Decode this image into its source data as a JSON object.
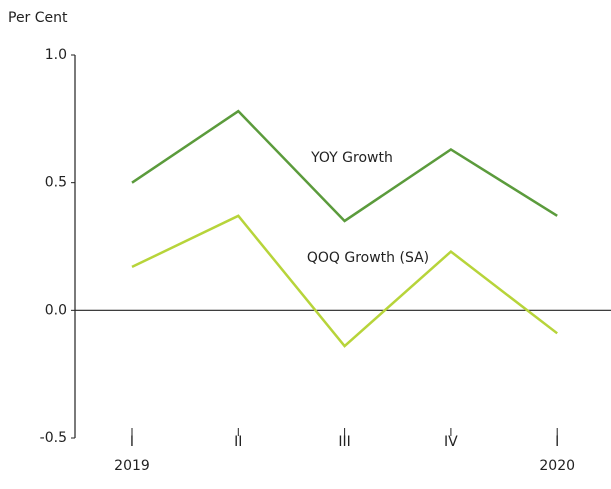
{
  "chart_data": {
    "type": "line",
    "y_label": "Per Cent",
    "categories": [
      "I",
      "II",
      "III",
      "IV",
      "I"
    ],
    "category_years": [
      "2019",
      null,
      null,
      null,
      "2020"
    ],
    "series": [
      {
        "name": "YOY Growth",
        "color": "#5b9b3c",
        "values": [
          0.5,
          0.78,
          0.35,
          0.63,
          0.37
        ]
      },
      {
        "name": "QOQ Growth (SA)",
        "color": "#b7d43a",
        "values": [
          0.17,
          0.37,
          -0.14,
          0.23,
          -0.09
        ]
      }
    ],
    "ylim": [
      -0.5,
      1.0
    ],
    "yticks": [
      -0.5,
      {
        "value": 0,
        "label": "0.0"
      },
      0.5,
      {
        "value": 1,
        "label": "1.0"
      }
    ]
  }
}
